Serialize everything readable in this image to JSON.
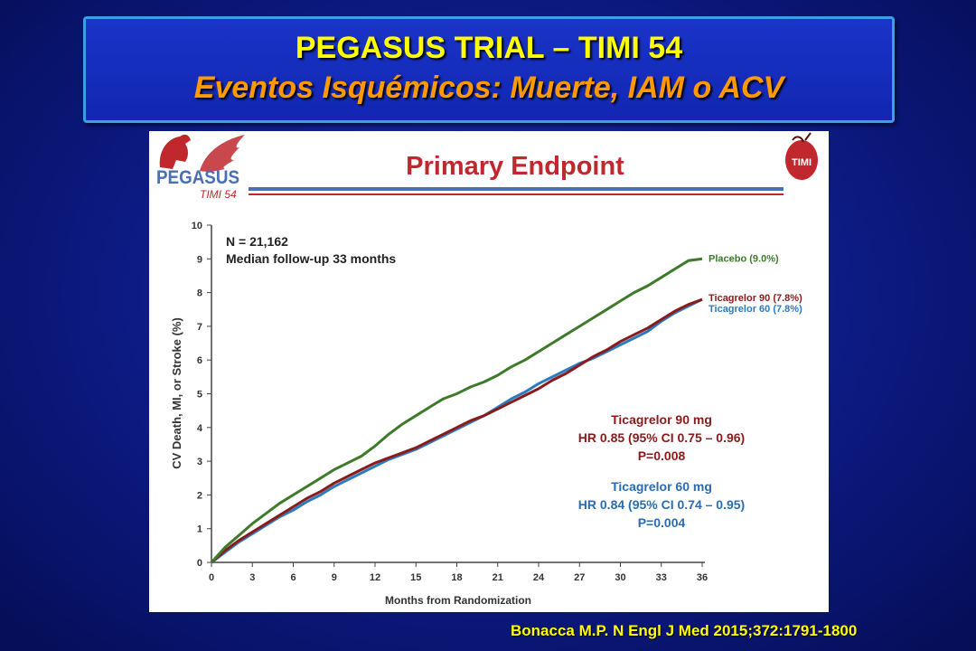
{
  "slide": {
    "title_line1": "PEGASUS TRIAL – TIMI 54",
    "title_line2": "Eventos Isquémicos: Muerte, IAM o ACV",
    "citation": "Bonacca M.P. N Engl J Med 2015;372:1791-1800"
  },
  "panel": {
    "logo_left_text": "PEGASUS",
    "logo_left_sub": "TIMI 54",
    "logo_right_text": "TIMI",
    "header": "Primary Endpoint",
    "colors": {
      "header": "#c0282e",
      "rule_blue": "#4a6fb5",
      "rule_red": "#c0282e"
    }
  },
  "chart_data": {
    "type": "line",
    "xlabel": "Months from Randomization",
    "ylabel": "CV Death, MI, or Stroke (%)",
    "xlim": [
      0,
      36
    ],
    "ylim": [
      0,
      10
    ],
    "xticks": [
      0,
      3,
      6,
      9,
      12,
      15,
      18,
      21,
      24,
      27,
      30,
      33,
      36
    ],
    "yticks": [
      0,
      1,
      2,
      3,
      4,
      5,
      6,
      7,
      8,
      9,
      10
    ],
    "grid": false,
    "legend": "right end labels",
    "series": [
      {
        "name": "Placebo (9.0%)",
        "color": "#3d7a2a",
        "x": [
          0,
          1,
          2,
          3,
          4,
          5,
          6,
          7,
          8,
          9,
          10,
          11,
          12,
          13,
          14,
          15,
          16,
          17,
          18,
          19,
          20,
          21,
          22,
          23,
          24,
          25,
          26,
          27,
          28,
          29,
          30,
          31,
          32,
          33,
          34,
          35,
          36
        ],
        "y": [
          0,
          0.45,
          0.8,
          1.15,
          1.45,
          1.75,
          2.0,
          2.25,
          2.5,
          2.75,
          2.95,
          3.15,
          3.45,
          3.8,
          4.1,
          4.35,
          4.6,
          4.85,
          5.0,
          5.2,
          5.35,
          5.55,
          5.8,
          6.0,
          6.25,
          6.5,
          6.75,
          7.0,
          7.25,
          7.5,
          7.75,
          8.0,
          8.2,
          8.45,
          8.7,
          8.95,
          9.0
        ]
      },
      {
        "name": "Ticagrelor 90 (7.8%)",
        "color": "#8b1a1a",
        "x": [
          0,
          1,
          2,
          3,
          4,
          5,
          6,
          7,
          8,
          9,
          10,
          11,
          12,
          13,
          14,
          15,
          16,
          17,
          18,
          19,
          20,
          21,
          22,
          23,
          24,
          25,
          26,
          27,
          28,
          29,
          30,
          31,
          32,
          33,
          34,
          35,
          36
        ],
        "y": [
          0,
          0.35,
          0.65,
          0.9,
          1.15,
          1.4,
          1.65,
          1.9,
          2.1,
          2.35,
          2.55,
          2.75,
          2.95,
          3.1,
          3.25,
          3.4,
          3.6,
          3.8,
          4.0,
          4.2,
          4.35,
          4.55,
          4.75,
          4.95,
          5.15,
          5.4,
          5.6,
          5.85,
          6.1,
          6.3,
          6.55,
          6.75,
          6.95,
          7.2,
          7.45,
          7.65,
          7.8
        ]
      },
      {
        "name": "Ticagrelor 60 (7.8%)",
        "color": "#2b7bc0",
        "x": [
          0,
          1,
          2,
          3,
          4,
          5,
          6,
          7,
          8,
          9,
          10,
          11,
          12,
          13,
          14,
          15,
          16,
          17,
          18,
          19,
          20,
          21,
          22,
          23,
          24,
          25,
          26,
          27,
          28,
          29,
          30,
          31,
          32,
          33,
          34,
          35,
          36
        ],
        "y": [
          0,
          0.3,
          0.6,
          0.85,
          1.1,
          1.35,
          1.55,
          1.8,
          2.0,
          2.25,
          2.45,
          2.65,
          2.85,
          3.05,
          3.2,
          3.35,
          3.55,
          3.75,
          3.95,
          4.15,
          4.35,
          4.6,
          4.85,
          5.05,
          5.3,
          5.5,
          5.7,
          5.9,
          6.05,
          6.25,
          6.45,
          6.65,
          6.85,
          7.15,
          7.4,
          7.6,
          7.8
        ]
      }
    ],
    "annotations": {
      "top_left": [
        "N = 21,162",
        "Median follow-up 33 months"
      ],
      "block1": {
        "color": "#8b1a1a",
        "lines": [
          "Ticagrelor 90 mg",
          "HR 0.85 (95% CI 0.75 – 0.96)",
          "P=0.008"
        ]
      },
      "block2": {
        "color": "#2b6cb0",
        "lines": [
          "Ticagrelor 60 mg",
          "HR 0.84 (95% CI 0.74 – 0.95)",
          "P=0.004"
        ]
      }
    }
  }
}
